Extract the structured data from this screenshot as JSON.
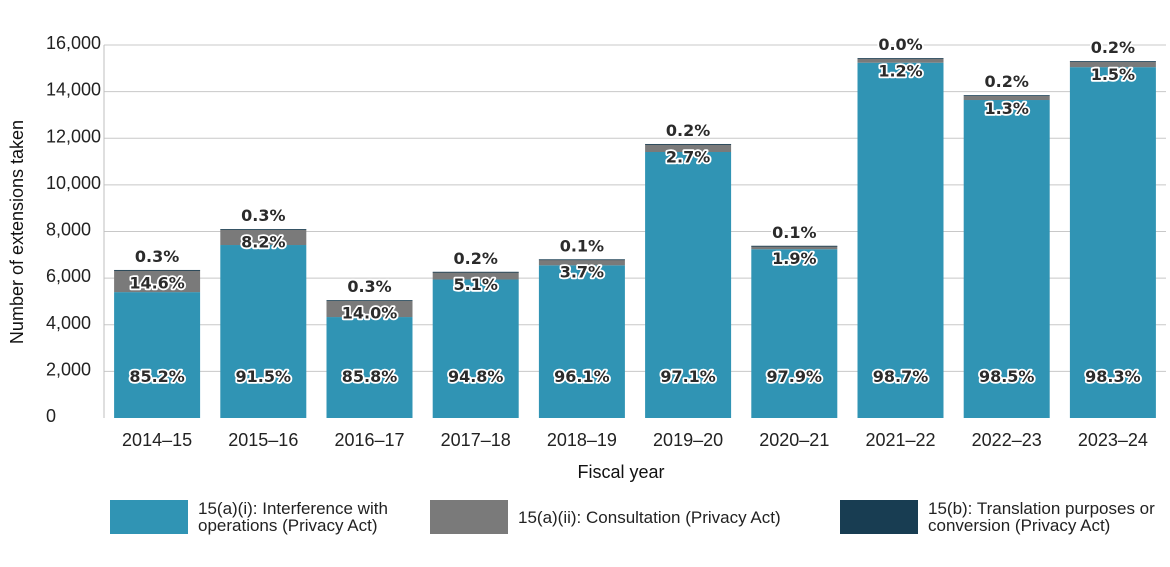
{
  "chart_data": {
    "type": "bar",
    "stacked": true,
    "title": "",
    "xlabel": "Fiscal year",
    "ylabel": "Number of extensions taken",
    "ylim": [
      0,
      16000
    ],
    "yticks": [
      0,
      2000,
      4000,
      6000,
      8000,
      10000,
      12000,
      14000,
      16000
    ],
    "ytick_labels": [
      "0",
      "2,000",
      "4,000",
      "6,000",
      "8,000",
      "10,000",
      "12,000",
      "14,000",
      "16,000"
    ],
    "categories": [
      "2014–15",
      "2015–16",
      "2016–17",
      "2017–18",
      "2018–19",
      "2019–20",
      "2020–21",
      "2021–22",
      "2022–23",
      "2023–24"
    ],
    "series": [
      {
        "name": "15(a)(i): Interference with operations (Privacy Act)",
        "color": "#3094b4",
        "values": [
          5400,
          7420,
          4330,
          5940,
          6550,
          11410,
          7240,
          15240,
          13640,
          15050
        ],
        "labels": [
          "85.2%",
          "91.5%",
          "85.8%",
          "94.8%",
          "96.1%",
          "97.1%",
          "97.9%",
          "98.7%",
          "98.5%",
          "98.3%"
        ]
      },
      {
        "name": "15(a)(ii): Consultation (Privacy Act)",
        "color": "#7a7a7a",
        "values": [
          930,
          660,
          710,
          320,
          250,
          320,
          140,
          190,
          180,
          230
        ],
        "labels": [
          "14.6%",
          "8.2%",
          "14.0%",
          "5.1%",
          "3.7%",
          "2.7%",
          "1.9%",
          "1.2%",
          "1.3%",
          "1.5%"
        ]
      },
      {
        "name": "15(b): Translation purposes or conversion (Privacy Act)",
        "color": "#183d52",
        "values": [
          20,
          25,
          15,
          12,
          7,
          24,
          7,
          3,
          27,
          31
        ],
        "labels": [
          "0.3%",
          "0.3%",
          "0.3%",
          "0.2%",
          "0.1%",
          "0.2%",
          "0.1%",
          "0.0%",
          "0.2%",
          "0.2%"
        ]
      }
    ],
    "legend": {
      "position": "bottom",
      "items": [
        {
          "label": "15(a)(i): Interference with\noperations (Privacy Act)",
          "color": "#3094b4"
        },
        {
          "label": "15(a)(ii): Consultation (Privacy Act)",
          "color": "#7a7a7a"
        },
        {
          "label": "15(b): Translation purposes or\nconversion (Privacy Act)",
          "color": "#183d52"
        }
      ]
    },
    "grid": true
  }
}
